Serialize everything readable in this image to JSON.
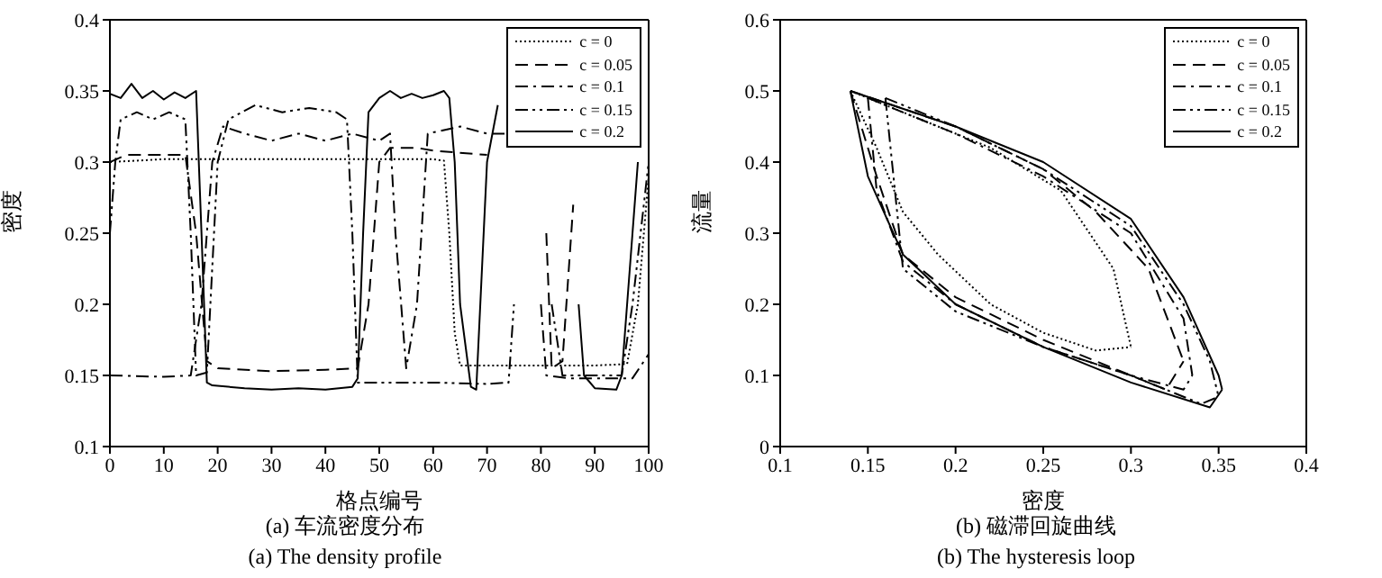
{
  "chart_data": [
    {
      "type": "line",
      "title": "(a) 车流密度分布",
      "subtitle": "(a) The density profile",
      "xlabel": "格点编号",
      "ylabel": "密度",
      "xlim": [
        0,
        100
      ],
      "xticks": [
        0,
        10,
        20,
        30,
        40,
        50,
        60,
        70,
        80,
        90,
        100
      ],
      "ylim": [
        0.1,
        0.4
      ],
      "yticks": [
        0.1,
        0.15,
        0.2,
        0.25,
        0.3,
        0.35,
        0.4
      ],
      "legend": "top right",
      "marker": "none",
      "series": [
        {
          "name": "c = 0",
          "color": "#000000",
          "line_style": "dotted",
          "x": [
            0,
            10,
            20,
            30,
            40,
            50,
            60,
            62,
            63,
            64,
            65,
            70,
            80,
            90,
            96,
            98,
            100
          ],
          "values": [
            0.3,
            0.302,
            0.302,
            0.302,
            0.302,
            0.302,
            0.302,
            0.301,
            0.25,
            0.18,
            0.157,
            0.157,
            0.157,
            0.157,
            0.158,
            0.2,
            0.29
          ]
        },
        {
          "name": "c = 0.05",
          "color": "#000000",
          "line_style": "dashed",
          "x": [
            0,
            3,
            14,
            16,
            18,
            20,
            30,
            40,
            46,
            48,
            50,
            52,
            57,
            60,
            70,
            80,
            81,
            82,
            84,
            86
          ],
          "values": [
            0.3,
            0.305,
            0.305,
            0.25,
            0.16,
            0.155,
            0.153,
            0.154,
            0.155,
            0.2,
            0.3,
            0.31,
            0.31,
            0.308,
            0.305,
            null,
            0.25,
            0.155,
            0.16,
            0.27
          ]
        },
        {
          "name": "c = 0.1",
          "color": "#000000",
          "line_style": "dashdot",
          "x": [
            0,
            10,
            15,
            17,
            19,
            21,
            25,
            30,
            35,
            40,
            45,
            50,
            52,
            53,
            55,
            57,
            59,
            65,
            70,
            75,
            78,
            80,
            81,
            85,
            90,
            97,
            100
          ],
          "values": [
            0.15,
            0.149,
            0.15,
            0.2,
            0.3,
            0.325,
            0.32,
            0.315,
            0.32,
            0.315,
            0.32,
            0.315,
            0.32,
            0.25,
            0.155,
            0.2,
            0.32,
            0.325,
            0.32,
            0.32,
            null,
            0.2,
            0.15,
            0.148,
            0.148,
            0.148,
            0.165
          ]
        },
        {
          "name": "c = 0.15",
          "color": "#000000",
          "line_style": "dashdotdot",
          "x": [
            0,
            1,
            2,
            5,
            8,
            11,
            14,
            15,
            16,
            18,
            20,
            22,
            27,
            32,
            37,
            42,
            44,
            45,
            46,
            50,
            60,
            70,
            74,
            75,
            76,
            78,
            80,
            82,
            84,
            90,
            95,
            97,
            100
          ],
          "values": [
            0.25,
            0.3,
            0.33,
            0.335,
            0.33,
            0.335,
            0.33,
            0.25,
            0.15,
            0.152,
            0.3,
            0.33,
            0.34,
            0.335,
            0.338,
            0.335,
            0.33,
            0.25,
            0.145,
            0.145,
            0.145,
            0.144,
            0.145,
            0.2,
            null,
            null,
            null,
            0.2,
            0.15,
            0.15,
            0.15,
            0.2,
            0.3
          ]
        },
        {
          "name": "c = 0.2",
          "color": "#000000",
          "line_style": "solid",
          "x": [
            0,
            2,
            4,
            6,
            8,
            10,
            12,
            14,
            16,
            17,
            18,
            19,
            25,
            30,
            35,
            40,
            45,
            46,
            47,
            48,
            50,
            52,
            54,
            56,
            58,
            60,
            62,
            63,
            64,
            65,
            67,
            68,
            70,
            72,
            75,
            85,
            86,
            87,
            88,
            90,
            94,
            95,
            97,
            98
          ],
          "values": [
            0.348,
            0.345,
            0.355,
            0.345,
            0.35,
            0.344,
            0.349,
            0.345,
            0.35,
            0.25,
            0.145,
            0.143,
            0.141,
            0.14,
            0.141,
            0.14,
            0.142,
            0.148,
            0.25,
            0.335,
            0.345,
            0.35,
            0.345,
            0.348,
            0.345,
            0.347,
            0.35,
            0.345,
            0.3,
            0.2,
            0.142,
            0.14,
            0.3,
            0.34,
            null,
            null,
            null,
            0.2,
            0.15,
            0.141,
            0.14,
            0.15,
            0.25,
            0.3
          ]
        }
      ]
    },
    {
      "type": "line",
      "title": "(b) 磁滞回旋曲线",
      "subtitle": "(b) The hysteresis loop",
      "xlabel": "密度",
      "ylabel": "流量",
      "xlim": [
        0.1,
        0.4
      ],
      "xticks": [
        0.1,
        0.15,
        0.2,
        0.25,
        0.3,
        0.35,
        0.4
      ],
      "ylim": [
        0,
        0.6
      ],
      "yticks": [
        0,
        0.1,
        0.2,
        0.3,
        0.4,
        0.5,
        0.6
      ],
      "legend": "top right",
      "marker": "none",
      "series": [
        {
          "name": "c = 0",
          "color": "#000000",
          "line_style": "dotted",
          "x": [
            0.14,
            0.18,
            0.22,
            0.26,
            0.29,
            0.3
          ],
          "values": [
            0.5,
            0.46,
            0.42,
            0.36,
            0.25,
            0.14
          ]
        },
        {
          "color": "#000000",
          "line_style": "dotted",
          "x": [
            0.14,
            0.155,
            0.17,
            0.19,
            0.22,
            0.25,
            0.28,
            0.3
          ],
          "values": [
            0.5,
            0.42,
            0.33,
            0.27,
            0.2,
            0.16,
            0.135,
            0.14
          ]
        },
        {
          "name": "c = 0.05",
          "color": "#000000",
          "line_style": "dashed",
          "x": [
            0.14,
            0.2,
            0.25,
            0.28,
            0.31,
            0.33
          ],
          "values": [
            0.5,
            0.45,
            0.39,
            0.33,
            0.25,
            0.12
          ]
        },
        {
          "color": "#000000",
          "line_style": "dashed",
          "x": [
            0.14,
            0.155,
            0.17,
            0.2,
            0.25,
            0.3,
            0.32,
            0.33
          ],
          "values": [
            0.5,
            0.38,
            0.27,
            0.21,
            0.15,
            0.1,
            0.08,
            0.12
          ]
        },
        {
          "name": "c = 0.1",
          "color": "#000000",
          "line_style": "dashdot",
          "x": [
            0.15,
            0.2,
            0.25,
            0.3,
            0.33,
            0.335
          ],
          "values": [
            0.49,
            0.44,
            0.38,
            0.3,
            0.18,
            0.1
          ]
        },
        {
          "color": "#000000",
          "line_style": "dashdot",
          "x": [
            0.15,
            0.155,
            0.17,
            0.2,
            0.25,
            0.3,
            0.33,
            0.335
          ],
          "values": [
            0.49,
            0.36,
            0.26,
            0.2,
            0.14,
            0.1,
            0.08,
            0.1
          ]
        },
        {
          "name": "c = 0.15",
          "color": "#000000",
          "line_style": "dashdotdot",
          "x": [
            0.16,
            0.2,
            0.25,
            0.3,
            0.33,
            0.345,
            0.35
          ],
          "values": [
            0.49,
            0.45,
            0.39,
            0.31,
            0.2,
            0.12,
            0.07
          ]
        },
        {
          "color": "#000000",
          "line_style": "dashdotdot",
          "x": [
            0.16,
            0.17,
            0.2,
            0.25,
            0.3,
            0.34,
            0.35
          ],
          "values": [
            0.49,
            0.25,
            0.19,
            0.14,
            0.1,
            0.06,
            0.07
          ]
        },
        {
          "name": "c = 0.2",
          "color": "#000000",
          "line_style": "solid",
          "x": [
            0.14,
            0.2,
            0.25,
            0.3,
            0.33,
            0.35,
            0.352
          ],
          "values": [
            0.5,
            0.45,
            0.4,
            0.32,
            0.21,
            0.1,
            0.08
          ]
        },
        {
          "color": "#000000",
          "line_style": "solid",
          "x": [
            0.14,
            0.15,
            0.17,
            0.2,
            0.25,
            0.3,
            0.345,
            0.352
          ],
          "values": [
            0.5,
            0.38,
            0.27,
            0.2,
            0.14,
            0.09,
            0.055,
            0.08
          ]
        }
      ]
    }
  ]
}
